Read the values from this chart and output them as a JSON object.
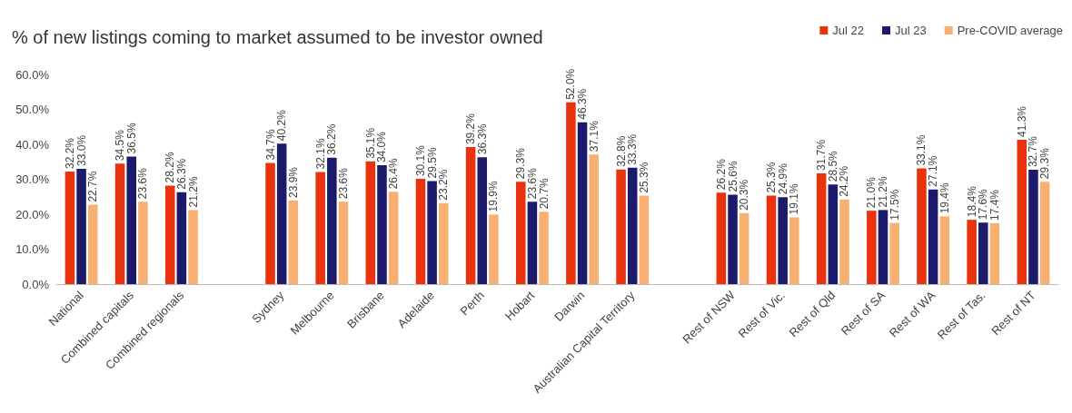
{
  "chart_data": {
    "type": "bar",
    "title": "% of new listings coming to market assumed to be investor owned",
    "categories": [
      "National",
      "Combined capitals",
      "Combined regionals",
      null,
      "Sydney",
      "Melbourne",
      "Brisbane",
      "Adelaide",
      "Perth",
      "Hobart",
      "Darwin",
      "Australian Capital Territory",
      null,
      "Rest of NSW",
      "Rest of Vic.",
      "Rest of Qld",
      "Rest of SA",
      "Rest of WA",
      "Rest of Tas.",
      "Rest of NT"
    ],
    "series": [
      {
        "name": "Jul 22",
        "color": "#e8330e",
        "values": [
          32.2,
          34.5,
          28.2,
          null,
          34.7,
          32.1,
          35.1,
          30.1,
          39.2,
          29.3,
          52.0,
          32.8,
          null,
          26.2,
          25.3,
          31.7,
          21.0,
          33.1,
          18.4,
          41.3
        ],
        "value_labels": [
          "32.2%",
          "34.5%",
          "28.2%",
          null,
          "34.7%",
          "32.1%",
          "35.1%",
          "30.1%",
          "39.2%",
          "29.3%",
          "52.0%",
          "32.8%",
          null,
          "26.2%",
          "25.3%",
          "31.7%",
          "21.0%",
          "33.1%",
          "18.4%",
          "41.3%"
        ]
      },
      {
        "name": "Jul 23",
        "color": "#1c1a6b",
        "values": [
          33.0,
          36.5,
          26.3,
          null,
          40.2,
          36.2,
          34.0,
          29.5,
          36.3,
          23.6,
          46.3,
          33.3,
          null,
          25.6,
          24.9,
          28.5,
          21.2,
          27.1,
          17.6,
          32.7
        ],
        "value_labels": [
          "33.0%",
          "36.5%",
          "26.3%",
          null,
          "40.2%",
          "36.2%",
          "34.0%",
          "29.5%",
          "36.3%",
          "23.6%",
          "46.3%",
          "33.3%",
          null,
          "25.6%",
          "24.9%",
          "28.5%",
          "21.2%",
          "27.1%",
          "17.6%",
          "32.7%"
        ]
      },
      {
        "name": "Pre-COVID average",
        "color": "#f7b072",
        "values": [
          22.7,
          23.6,
          21.2,
          null,
          23.9,
          23.6,
          26.4,
          23.2,
          19.9,
          20.7,
          37.1,
          25.3,
          null,
          20.3,
          19.1,
          24.2,
          17.5,
          19.4,
          17.4,
          29.3
        ],
        "value_labels": [
          "22.7%",
          "23.6%",
          "21.2%",
          null,
          "23.9%",
          "23.6%",
          "26.4%",
          "23.2%",
          "19.9%",
          "20.7%",
          "37.1%",
          "25.3%",
          null,
          "20.3%",
          "19.1%",
          "24.2%",
          "17.5%",
          "19.4%",
          "17.4%",
          "29.3%"
        ]
      }
    ],
    "ylim": [
      0,
      60
    ],
    "yticks": [
      {
        "value": 0,
        "label": "0.0%"
      },
      {
        "value": 10,
        "label": "10.0%"
      },
      {
        "value": 20,
        "label": "20.0%"
      },
      {
        "value": 30,
        "label": "30.0%"
      },
      {
        "value": 40,
        "label": "40.0%"
      },
      {
        "value": 50,
        "label": "50.0%"
      },
      {
        "value": 60,
        "label": "60.0%"
      }
    ],
    "legend": "top right"
  }
}
